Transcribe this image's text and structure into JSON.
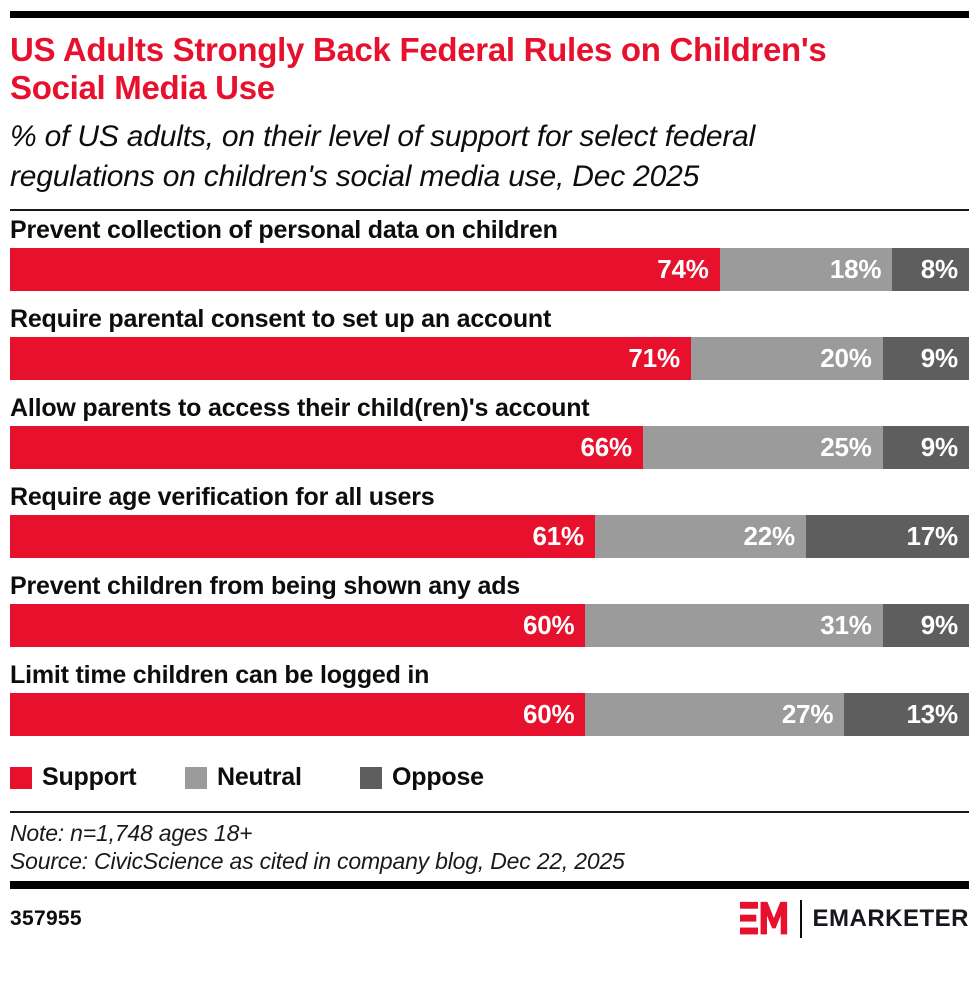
{
  "header": {
    "title": "US Adults Strongly Back Federal Rules on Children's Social Media Use",
    "subtitle": "% of US adults, on their level of support for select federal regulations on children's social media use, Dec 2025"
  },
  "chart_data": {
    "type": "bar",
    "orientation": "horizontal",
    "stacked": true,
    "xlim": [
      0,
      100
    ],
    "value_suffix": "%",
    "grid": false,
    "legend_position": "bottom",
    "categories": [
      "Prevent collection of personal data on children",
      "Require parental consent to set up an account",
      "Allow parents to access their child(ren)'s account",
      "Require age verification for all users",
      "Prevent children from being shown any ads",
      "Limit time children can be logged in"
    ],
    "series": [
      {
        "name": "Support",
        "color": "#e8112d",
        "values": [
          74,
          71,
          66,
          61,
          60,
          60
        ]
      },
      {
        "name": "Neutral",
        "color": "#9b9b9b",
        "values": [
          18,
          20,
          25,
          22,
          31,
          27
        ]
      },
      {
        "name": "Oppose",
        "color": "#5e5e5e",
        "values": [
          8,
          9,
          9,
          17,
          9,
          13
        ]
      }
    ]
  },
  "legend": {
    "items": [
      {
        "label": "Support",
        "color": "#e8112d"
      },
      {
        "label": "Neutral",
        "color": "#9b9b9b"
      },
      {
        "label": "Oppose",
        "color": "#5e5e5e"
      }
    ]
  },
  "footer": {
    "note": "Note: n=1,748 ages 18+",
    "source": "Source: CivicScience as cited in company blog, Dec 22, 2025",
    "chart_id": "357955",
    "logo_text": "EMARKETER"
  }
}
